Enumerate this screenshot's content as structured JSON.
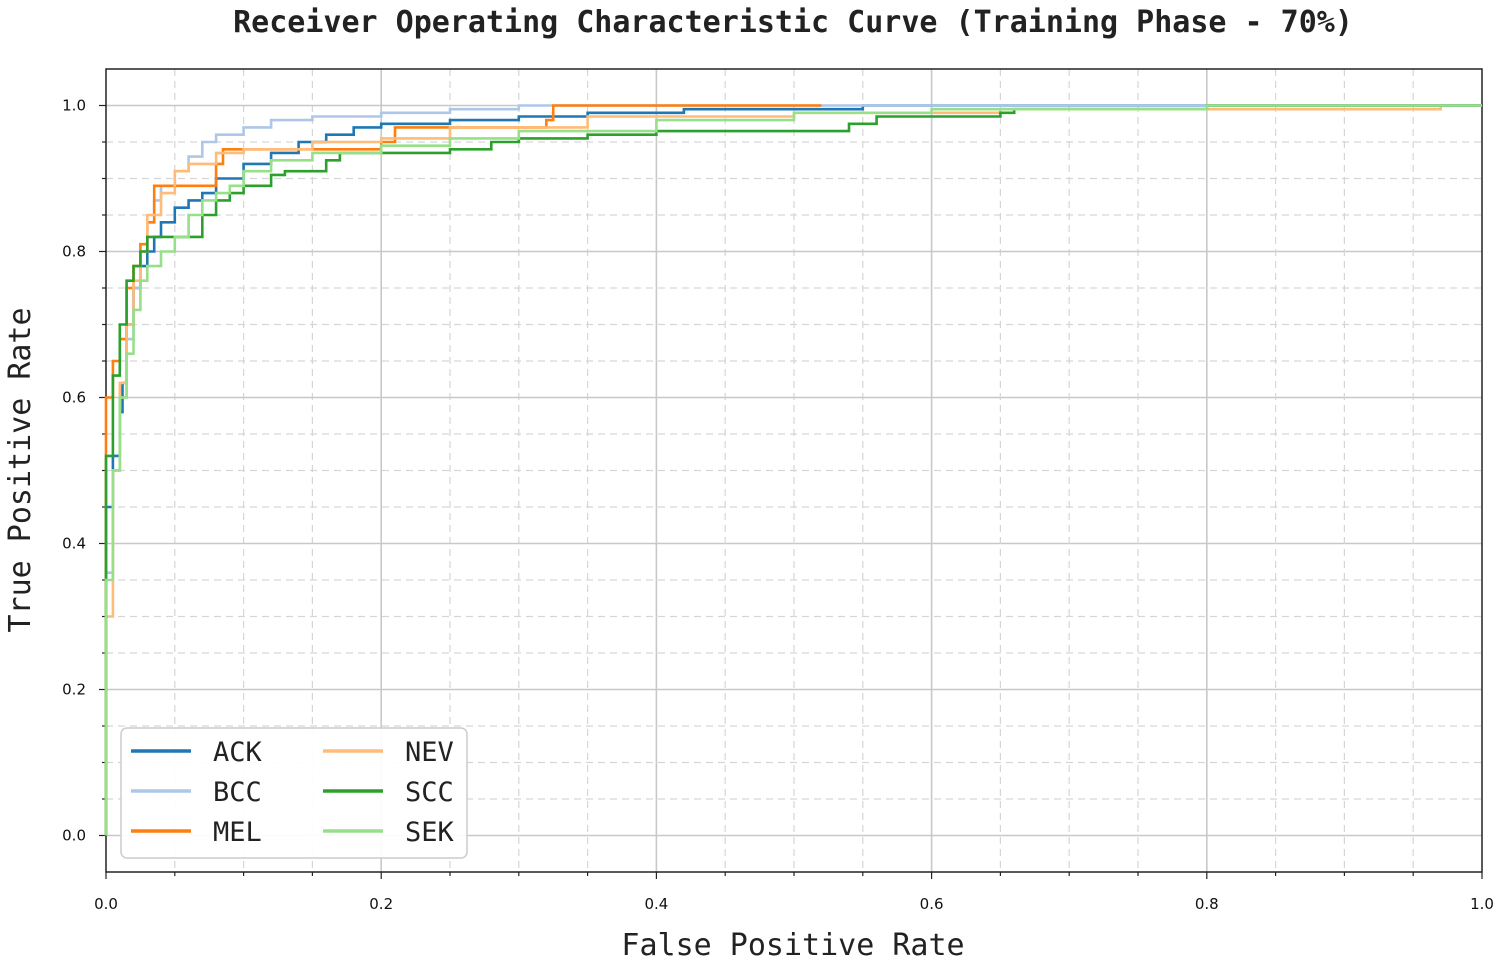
{
  "chart_data": {
    "type": "line",
    "title": "Receiver Operating Characteristic Curve (Training Phase - 70%)",
    "xlabel": "False Positive Rate",
    "ylabel": "True Positive Rate",
    "xlim": [
      0,
      1
    ],
    "ylim": [
      -0.05,
      1.05
    ],
    "x_ticks": [
      "0.0",
      "0.2",
      "0.4",
      "0.6",
      "0.8",
      "1.0"
    ],
    "y_ticks": [
      "0.0",
      "0.2",
      "0.4",
      "0.6",
      "0.8",
      "1.0"
    ],
    "grid": true,
    "legend_position": "lower-left",
    "series": [
      {
        "name": "ACK",
        "color": "#1f77b4",
        "points": [
          [
            0,
            0
          ],
          [
            0,
            0.45
          ],
          [
            0.005,
            0.52
          ],
          [
            0.01,
            0.58
          ],
          [
            0.012,
            0.62
          ],
          [
            0.015,
            0.7
          ],
          [
            0.02,
            0.75
          ],
          [
            0.025,
            0.78
          ],
          [
            0.03,
            0.8
          ],
          [
            0.035,
            0.82
          ],
          [
            0.04,
            0.84
          ],
          [
            0.05,
            0.86
          ],
          [
            0.06,
            0.87
          ],
          [
            0.07,
            0.88
          ],
          [
            0.08,
            0.9
          ],
          [
            0.1,
            0.92
          ],
          [
            0.12,
            0.935
          ],
          [
            0.14,
            0.95
          ],
          [
            0.16,
            0.96
          ],
          [
            0.18,
            0.97
          ],
          [
            0.2,
            0.975
          ],
          [
            0.25,
            0.98
          ],
          [
            0.3,
            0.985
          ],
          [
            0.35,
            0.99
          ],
          [
            0.42,
            0.995
          ],
          [
            0.55,
            1.0
          ],
          [
            1.0,
            1.0
          ]
        ]
      },
      {
        "name": "BCC",
        "color": "#aec7e8",
        "points": [
          [
            0,
            0
          ],
          [
            0,
            0.36
          ],
          [
            0.005,
            0.5
          ],
          [
            0.01,
            0.6
          ],
          [
            0.015,
            0.68
          ],
          [
            0.02,
            0.75
          ],
          [
            0.025,
            0.8
          ],
          [
            0.03,
            0.84
          ],
          [
            0.035,
            0.87
          ],
          [
            0.04,
            0.89
          ],
          [
            0.05,
            0.91
          ],
          [
            0.06,
            0.93
          ],
          [
            0.07,
            0.95
          ],
          [
            0.08,
            0.96
          ],
          [
            0.1,
            0.97
          ],
          [
            0.12,
            0.98
          ],
          [
            0.15,
            0.985
          ],
          [
            0.2,
            0.99
          ],
          [
            0.25,
            0.995
          ],
          [
            0.3,
            1.0
          ],
          [
            1.0,
            1.0
          ]
        ]
      },
      {
        "name": "MEL",
        "color": "#ff7f0e",
        "points": [
          [
            0,
            0
          ],
          [
            0,
            0.6
          ],
          [
            0.005,
            0.65
          ],
          [
            0.01,
            0.68
          ],
          [
            0.015,
            0.75
          ],
          [
            0.02,
            0.78
          ],
          [
            0.025,
            0.81
          ],
          [
            0.03,
            0.84
          ],
          [
            0.035,
            0.89
          ],
          [
            0.05,
            0.89
          ],
          [
            0.07,
            0.89
          ],
          [
            0.08,
            0.92
          ],
          [
            0.085,
            0.94
          ],
          [
            0.1,
            0.94
          ],
          [
            0.15,
            0.94
          ],
          [
            0.2,
            0.95
          ],
          [
            0.21,
            0.97
          ],
          [
            0.3,
            0.97
          ],
          [
            0.32,
            0.98
          ],
          [
            0.325,
            1.0
          ],
          [
            0.52,
            1.0
          ]
        ]
      },
      {
        "name": "NEV",
        "color": "#ffbb78",
        "points": [
          [
            0,
            0
          ],
          [
            0,
            0.3
          ],
          [
            0.005,
            0.5
          ],
          [
            0.01,
            0.62
          ],
          [
            0.015,
            0.7
          ],
          [
            0.02,
            0.76
          ],
          [
            0.025,
            0.8
          ],
          [
            0.03,
            0.85
          ],
          [
            0.04,
            0.88
          ],
          [
            0.05,
            0.91
          ],
          [
            0.06,
            0.92
          ],
          [
            0.08,
            0.935
          ],
          [
            0.1,
            0.94
          ],
          [
            0.15,
            0.95
          ],
          [
            0.2,
            0.955
          ],
          [
            0.25,
            0.97
          ],
          [
            0.35,
            0.985
          ],
          [
            0.5,
            0.99
          ],
          [
            0.65,
            0.995
          ],
          [
            0.8,
            0.995
          ],
          [
            0.97,
            0.995
          ],
          [
            0.97,
            1.0
          ]
        ]
      },
      {
        "name": "SCC",
        "color": "#2ca02c",
        "points": [
          [
            0,
            0
          ],
          [
            0,
            0.52
          ],
          [
            0.005,
            0.63
          ],
          [
            0.01,
            0.7
          ],
          [
            0.015,
            0.76
          ],
          [
            0.02,
            0.78
          ],
          [
            0.025,
            0.8
          ],
          [
            0.03,
            0.82
          ],
          [
            0.06,
            0.82
          ],
          [
            0.07,
            0.85
          ],
          [
            0.08,
            0.87
          ],
          [
            0.09,
            0.88
          ],
          [
            0.1,
            0.89
          ],
          [
            0.12,
            0.905
          ],
          [
            0.13,
            0.91
          ],
          [
            0.16,
            0.925
          ],
          [
            0.17,
            0.935
          ],
          [
            0.25,
            0.94
          ],
          [
            0.28,
            0.95
          ],
          [
            0.3,
            0.955
          ],
          [
            0.35,
            0.96
          ],
          [
            0.4,
            0.965
          ],
          [
            0.5,
            0.965
          ],
          [
            0.54,
            0.975
          ],
          [
            0.56,
            0.985
          ],
          [
            0.65,
            0.99
          ],
          [
            0.66,
            0.995
          ],
          [
            0.8,
            1.0
          ],
          [
            1.0,
            1.0
          ]
        ]
      },
      {
        "name": "SEK",
        "color": "#98df8a",
        "points": [
          [
            0,
            0
          ],
          [
            0,
            0.35
          ],
          [
            0.005,
            0.5
          ],
          [
            0.01,
            0.6
          ],
          [
            0.015,
            0.66
          ],
          [
            0.02,
            0.72
          ],
          [
            0.025,
            0.76
          ],
          [
            0.03,
            0.78
          ],
          [
            0.04,
            0.8
          ],
          [
            0.05,
            0.82
          ],
          [
            0.06,
            0.85
          ],
          [
            0.07,
            0.87
          ],
          [
            0.08,
            0.88
          ],
          [
            0.09,
            0.89
          ],
          [
            0.1,
            0.91
          ],
          [
            0.12,
            0.925
          ],
          [
            0.15,
            0.935
          ],
          [
            0.2,
            0.945
          ],
          [
            0.25,
            0.955
          ],
          [
            0.3,
            0.965
          ],
          [
            0.4,
            0.98
          ],
          [
            0.5,
            0.99
          ],
          [
            0.6,
            0.995
          ],
          [
            0.8,
            1.0
          ],
          [
            1.0,
            1.0
          ]
        ]
      }
    ]
  }
}
